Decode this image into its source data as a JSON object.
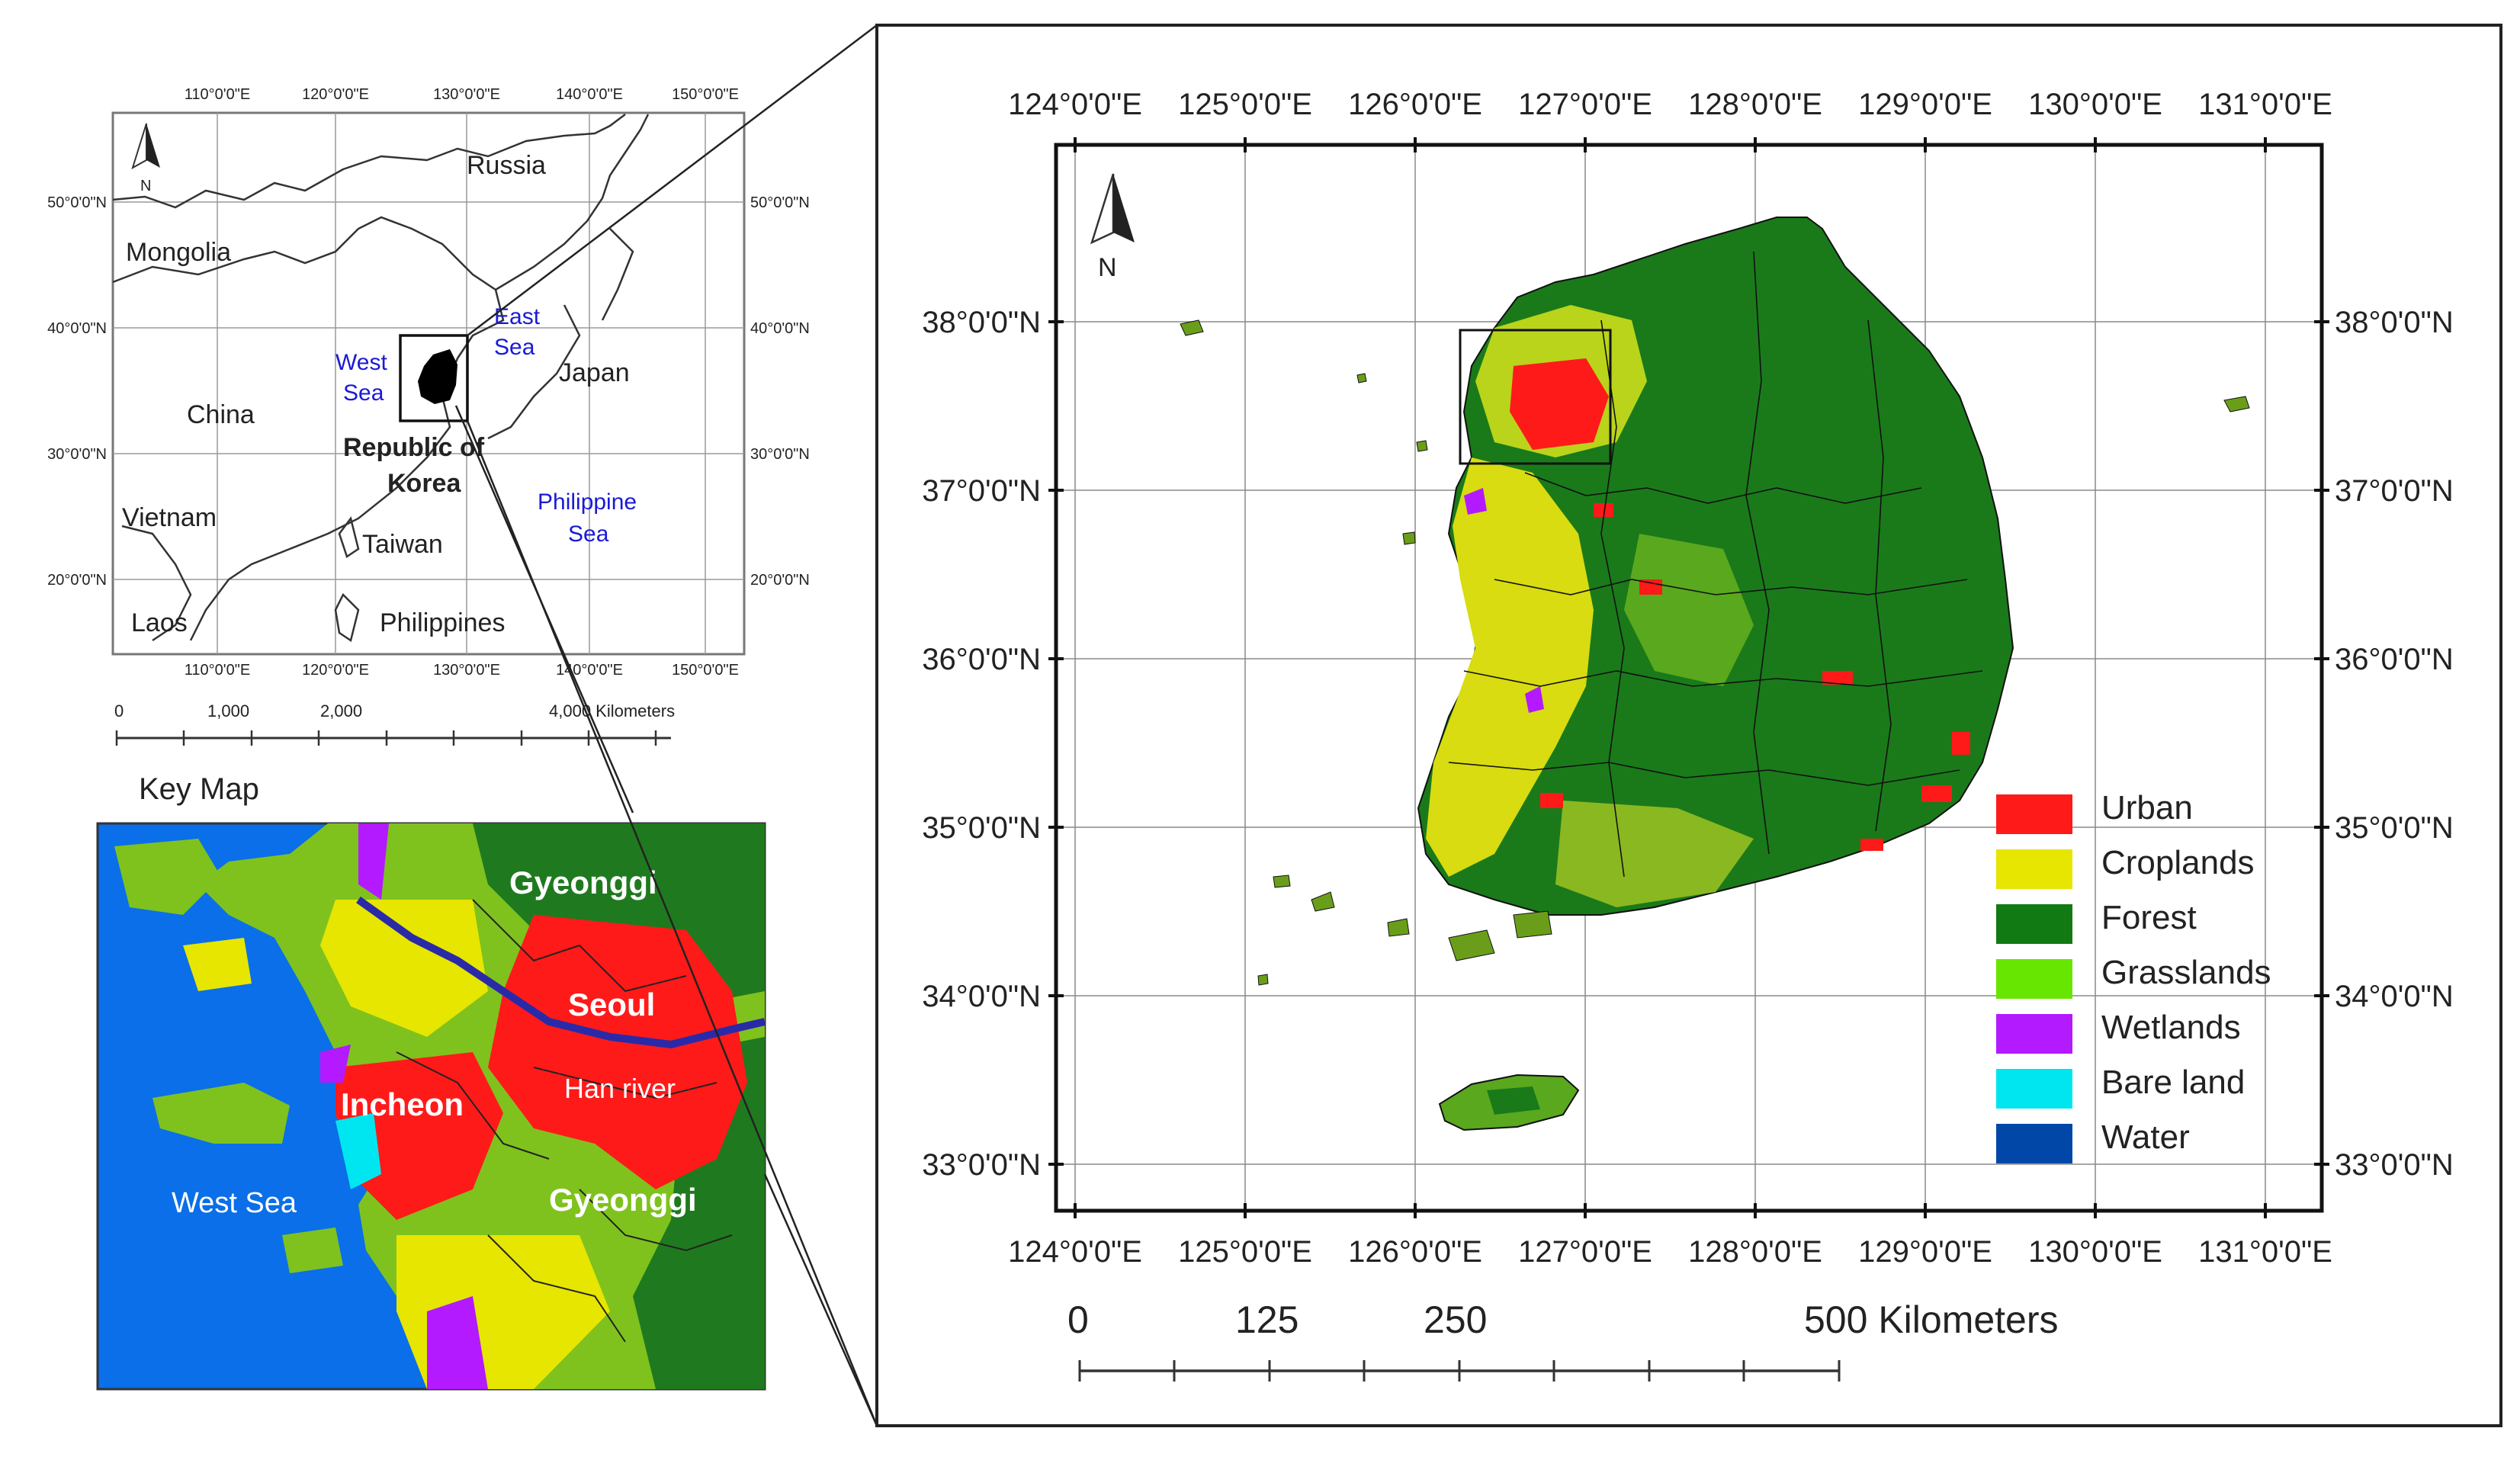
{
  "overview_map": {
    "top_lon_labels": [
      "110°0'0\"E",
      "120°0'0\"E",
      "130°0'0\"E",
      "140°0'0\"E",
      "150°0'0\"E"
    ],
    "bottom_lon_labels": [
      "110°0'0\"E",
      "120°0'0\"E",
      "130°0'0\"E",
      "140°0'0\"E",
      "150°0'0\"E"
    ],
    "left_lat_labels": [
      "50°0'0\"N",
      "40°0'0\"N",
      "30°0'0\"N",
      "20°0'0\"N"
    ],
    "right_lat_labels": [
      "50°0'0\"N",
      "40°0'0\"N",
      "30°0'0\"N",
      "20°0'0\"N"
    ],
    "north_label": "N",
    "places": {
      "russia": "Russia",
      "mongolia": "Mongolia",
      "china": "China",
      "japan": "Japan",
      "vietnam": "Vietnam",
      "taiwan": "Taiwan",
      "laos": "Laos",
      "philippines": "Philippines",
      "rok_line1": "Republic of",
      "rok_line2": "Korea"
    },
    "seas": {
      "east_line1": "East",
      "east_line2": "Sea",
      "west_line1": "West",
      "west_line2": "Sea",
      "phil_line1": "Philippine",
      "phil_line2": "Sea"
    },
    "scale_labels": [
      "0",
      "1,000",
      "2,000",
      "4,000 Kilometers"
    ]
  },
  "key_map": {
    "title": "Key Map",
    "labels": {
      "gyeonggi_top": "Gyeonggi",
      "seoul": "Seoul",
      "incheon": "Incheon",
      "han_river": "Han river",
      "west_sea": "West Sea",
      "gyeonggi_bottom": "Gyeonggi"
    }
  },
  "main_map": {
    "top_lon_labels": [
      "124°0'0\"E",
      "125°0'0\"E",
      "126°0'0\"E",
      "127°0'0\"E",
      "128°0'0\"E",
      "129°0'0\"E",
      "130°0'0\"E",
      "131°0'0\"E"
    ],
    "bottom_lon_labels": [
      "124°0'0\"E",
      "125°0'0\"E",
      "126°0'0\"E",
      "127°0'0\"E",
      "128°0'0\"E",
      "129°0'0\"E",
      "130°0'0\"E",
      "131°0'0\"E"
    ],
    "left_lat_labels": [
      "38°0'0\"N",
      "37°0'0\"N",
      "36°0'0\"N",
      "35°0'0\"N",
      "34°0'0\"N",
      "33°0'0\"N"
    ],
    "right_lat_labels": [
      "38°0'0\"N",
      "37°0'0\"N",
      "36°0'0\"N",
      "35°0'0\"N",
      "34°0'0\"N",
      "33°0'0\"N"
    ],
    "north_label": "N",
    "legend": [
      {
        "label": "Urban",
        "color": "#ff1a1a"
      },
      {
        "label": "Croplands",
        "color": "#e6e600"
      },
      {
        "label": "Forest",
        "color": "#127a12"
      },
      {
        "label": "Grasslands",
        "color": "#66e600"
      },
      {
        "label": "Wetlands",
        "color": "#b31aff"
      },
      {
        "label": "Bare land",
        "color": "#00e6f0"
      },
      {
        "label": "Water",
        "color": "#0047a8"
      }
    ],
    "scale_labels": [
      "0",
      "125",
      "250",
      "500 Kilometers"
    ]
  }
}
